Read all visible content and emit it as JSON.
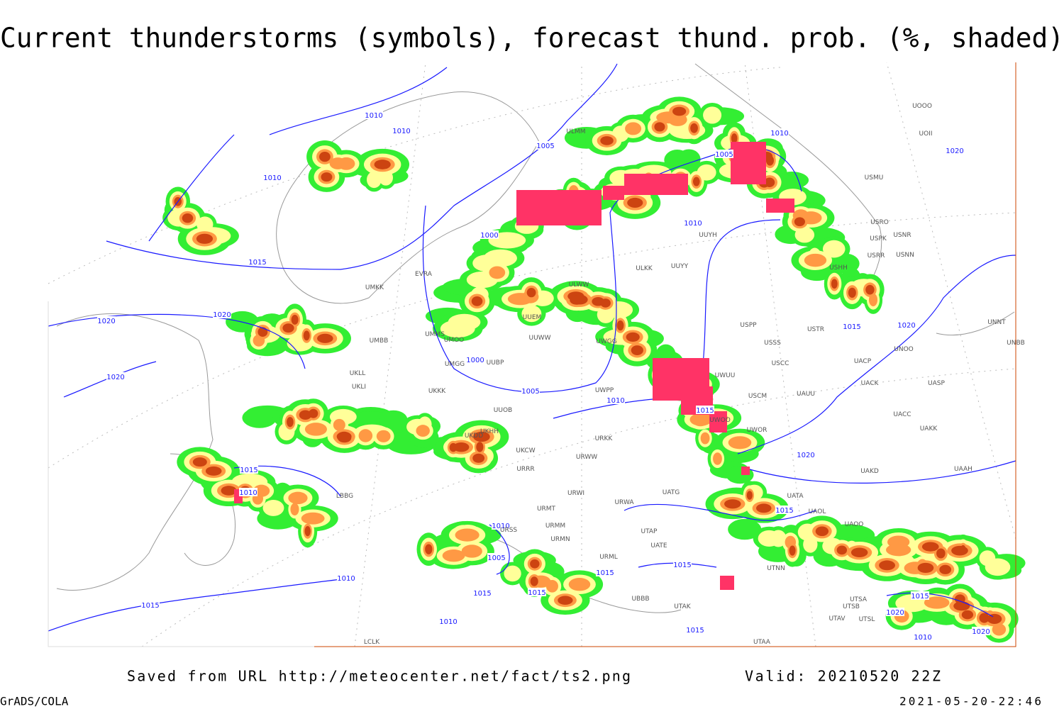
{
  "header": {
    "title": "Current thunderstorms (symbols), forecast thund. prob. (%, shaded)"
  },
  "map": {
    "isobar_labels": [
      "1010",
      "1010",
      "1005",
      "1010",
      "1005",
      "1020",
      "1010",
      "1010",
      "1000",
      "1015",
      "1020",
      "1020",
      "1020",
      "1000",
      "1005",
      "1010",
      "1015",
      "1015",
      "1020",
      "1020",
      "1015",
      "1010",
      "1015",
      "1010",
      "1005",
      "1015",
      "1015",
      "1010",
      "1015",
      "1015",
      "1015",
      "1010",
      "1015",
      "1015",
      "1020",
      "1020",
      "1010"
    ],
    "stations": [
      "UOOO",
      "UOII",
      "USMU",
      "USRO",
      "USNR",
      "USPK",
      "USNN",
      "USRR",
      "USHH",
      "UUYH",
      "ULKK",
      "UUYY",
      "ULWW",
      "EVRA",
      "UMKK",
      "UMMS",
      "UMOO",
      "UMBB",
      "UMGG",
      "UUBP",
      "UUWW",
      "UUEM",
      "UWGG",
      "UWPP",
      "UWUU",
      "USPP",
      "USSS",
      "USTR",
      "USCC",
      "USCM",
      "UAUU",
      "UACK",
      "UASP",
      "UACC",
      "UAKK",
      "UWOO",
      "UWOR",
      "UUOB",
      "UKKK",
      "UKLL",
      "UKLI",
      "UKHH",
      "UKDD",
      "URKK",
      "UKCW",
      "URWW",
      "URRR",
      "URWI",
      "UATG",
      "UATA",
      "UAOL",
      "UAOO",
      "UNNT",
      "UNBB",
      "UNOO",
      "UACP",
      "UAKD",
      "UAAH",
      "URMT",
      "URMM",
      "URMN",
      "URSS",
      "URML",
      "UBBB",
      "UTAK",
      "UTNN",
      "UTAP",
      "UATE",
      "URWA",
      "UTSA",
      "UTSB",
      "UTAV",
      "UTAA",
      "UTSL",
      "LCLK",
      "LBBG",
      "ULMM"
    ]
  },
  "footer": {
    "source": "Saved from URL http://meteocenter.net/fact/ts2.png",
    "valid": "Valid: 20210520 22Z",
    "software": "GrADS/COLA",
    "timestamp": "2021-05-20-22:46"
  }
}
